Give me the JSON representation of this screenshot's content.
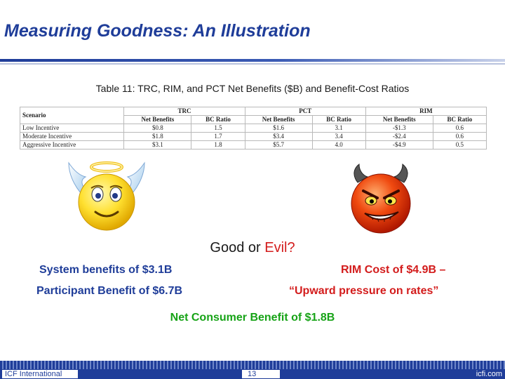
{
  "slide": {
    "title": "Measuring Goodness: An Illustration",
    "caption": "Table 11: TRC, RIM, and PCT Net Benefits ($B) and Benefit-Cost Ratios",
    "question_prefix": "Good or ",
    "question_evil": "Evil?",
    "left_point_1": "System benefits of $3.1B",
    "left_point_2": "Participant Benefit of $6.7B",
    "right_point_1": "RIM Cost of $4.9B –",
    "right_point_2": "“Upward pressure on rates”",
    "net_benefit": "Net Consumer Benefit of $1.8B"
  },
  "table": {
    "scenario_header": "Scenario",
    "group_headers": [
      "TRC",
      "PCT",
      "RIM"
    ],
    "sub_headers": [
      "Net Benefits",
      "BC Ratio",
      "Net Benefits",
      "BC Ratio",
      "Net Benefits",
      "BC Ratio"
    ],
    "rows": [
      {
        "scenario": "Low Incentive",
        "values": [
          "$0.8",
          "1.5",
          "$1.6",
          "3.1",
          "-$1.3",
          "0.6"
        ]
      },
      {
        "scenario": "Moderate Incentive",
        "values": [
          "$1.8",
          "1.7",
          "$3.4",
          "3.4",
          "-$2.4",
          "0.6"
        ]
      },
      {
        "scenario": "Aggressive Incentive",
        "values": [
          "$3.1",
          "1.8",
          "$5.7",
          "4.0",
          "-$4.9",
          "0.5"
        ]
      }
    ]
  },
  "footer": {
    "company": "ICF International",
    "page_number": "13",
    "url": "icfi.com"
  },
  "icons": {
    "angel": "angel-smiley-icon",
    "devil": "devil-smiley-icon"
  },
  "colors": {
    "title_blue": "#1f3d99",
    "evil_red": "#d31c1c",
    "net_green": "#17a317"
  }
}
